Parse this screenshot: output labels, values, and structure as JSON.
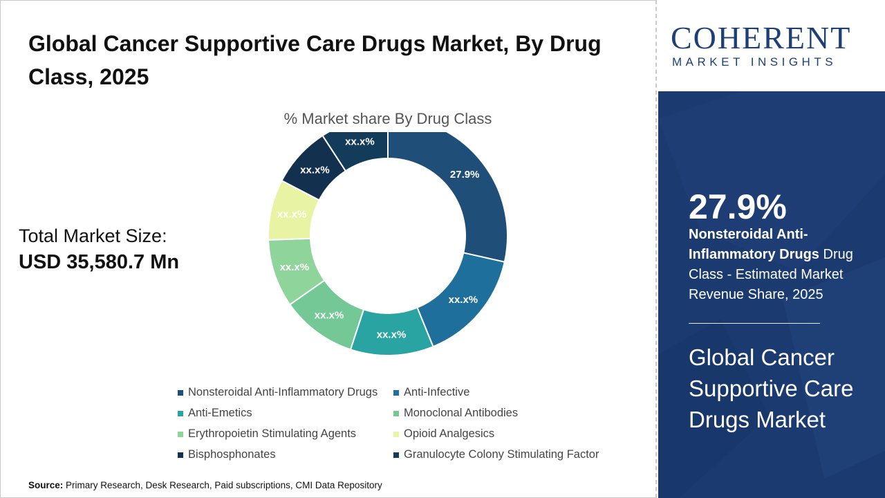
{
  "title": "Global Cancer Supportive Care Drugs Market, By Drug Class, 2025",
  "total_market": {
    "label": "Total Market Size:",
    "value": "USD 35,580.7 Mn"
  },
  "source": {
    "label": "Source:",
    "text": "Primary Research, Desk Research, Paid subscriptions, CMI Data Repository"
  },
  "logo": {
    "main": "COHERENT",
    "sub": "MARKET INSIGHTS"
  },
  "sidebar": {
    "highlight_value": "27.9%",
    "highlight_desc_bold": "Nonsteroidal Anti-Inflammatory Drugs",
    "highlight_desc_rest": " Drug Class - Estimated Market Revenue Share, 2025",
    "market_name": "Global Cancer Supportive Care Drugs Market"
  },
  "colors": {
    "sidebar_bg": "#1b3a70",
    "brand": "#1c3f77"
  },
  "chart_data": {
    "type": "pie",
    "variant": "donut",
    "title": "% Market share By Drug Class",
    "legend_position": "bottom",
    "slices": [
      {
        "name": "Nonsteroidal Anti-Inflammatory Drugs",
        "value": 27.9,
        "label": "27.9%",
        "color": "#1f4e79"
      },
      {
        "name": "Anti-Infective",
        "value": 15,
        "label": "xx.x%",
        "color": "#1f6f9c"
      },
      {
        "name": "Anti-Emetics",
        "value": 11,
        "label": "xx.x%",
        "color": "#2aa3a3"
      },
      {
        "name": "Monoclonal Antibodies",
        "value": 10,
        "label": "xx.x%",
        "color": "#74c895"
      },
      {
        "name": "Erythropoietin Stimulating Agents",
        "value": 9,
        "label": "xx.x%",
        "color": "#8fd49a"
      },
      {
        "name": "Opioid Analgesics",
        "value": 8,
        "label": "xx.x%",
        "color": "#e8f3a3"
      },
      {
        "name": "Bisphosphonates",
        "value": 8,
        "label": "xx.x%",
        "color": "#14304f"
      },
      {
        "name": "Granulocyte Colony Stimulating Factor",
        "value": 9,
        "label": "xx.x%",
        "color": "#123c59"
      }
    ]
  }
}
